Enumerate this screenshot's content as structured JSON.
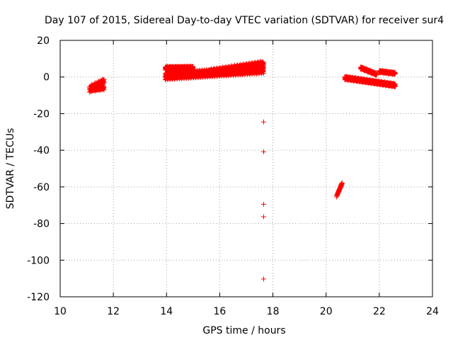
{
  "chart_data": {
    "type": "scatter",
    "title": "Day 107 of 2015, Sidereal Day-to-day VTEC variation (SDTVAR) for receiver sur4",
    "xlabel": "GPS time / hours",
    "ylabel": "SDTVAR / TECUs",
    "xlim": [
      10,
      24
    ],
    "ylim": [
      -120,
      20
    ],
    "xticks": [
      10,
      12,
      14,
      16,
      18,
      20,
      22,
      24
    ],
    "yticks": [
      20,
      0,
      -20,
      -40,
      -60,
      -80,
      -100,
      -120
    ],
    "grid": true,
    "marker": "+",
    "series_color": "#ff0000",
    "segments": [
      {
        "x_start": 11.1,
        "x_end": 11.65,
        "y_start": -6.5,
        "y_end": -2.5,
        "thickness": 3.5,
        "step": 0.012
      },
      {
        "x_start": 11.15,
        "x_end": 11.65,
        "y_start": -7.0,
        "y_end": -6.0,
        "thickness": 2.0,
        "step": 0.015
      },
      {
        "x_start": 13.95,
        "x_end": 15.0,
        "y_start": 4.8,
        "y_end": 5.0,
        "thickness": 2.0,
        "step": 0.01
      },
      {
        "x_start": 13.95,
        "x_end": 17.65,
        "y_start": 0.5,
        "y_end": 4.0,
        "thickness": 4.0,
        "step": 0.008
      },
      {
        "x_start": 15.6,
        "x_end": 17.65,
        "y_start": 2.5,
        "y_end": 7.0,
        "thickness": 3.5,
        "step": 0.01
      },
      {
        "x_start": 20.7,
        "x_end": 22.6,
        "y_start": -0.5,
        "y_end": -4.5,
        "thickness": 2.0,
        "step": 0.01
      },
      {
        "x_start": 21.3,
        "x_end": 21.9,
        "y_start": 5.0,
        "y_end": 1.5,
        "thickness": 1.5,
        "step": 0.012
      },
      {
        "x_start": 22.0,
        "x_end": 22.6,
        "y_start": 3.0,
        "y_end": 2.0,
        "thickness": 1.5,
        "step": 0.015
      },
      {
        "x_start": 20.4,
        "x_end": 20.6,
        "y_start": -65.0,
        "y_end": -58.0,
        "thickness": 1.0,
        "step": 0.008
      }
    ],
    "outliers": [
      {
        "x": 17.65,
        "y": -24.5
      },
      {
        "x": 17.65,
        "y": -40.8
      },
      {
        "x": 17.65,
        "y": -69.5
      },
      {
        "x": 17.65,
        "y": -76.3
      },
      {
        "x": 17.65,
        "y": -110.3
      }
    ]
  }
}
